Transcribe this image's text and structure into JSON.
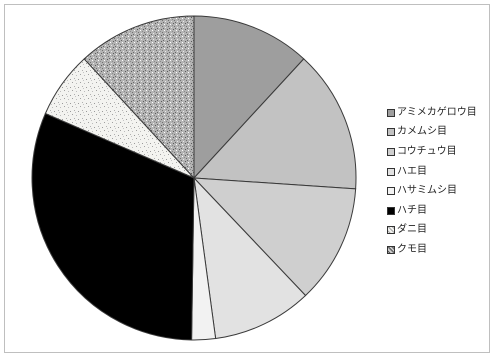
{
  "chart_data": {
    "type": "pie",
    "title": "",
    "categories": [
      "アミメカゲロウ目",
      "カメムシ目",
      "コウチュウ目",
      "ハエ目",
      "ハサミムシ目",
      "ハチ目",
      "ダニ目",
      "クモ目"
    ],
    "values": [
      12.5,
      15,
      12.5,
      10.5,
      2.5,
      33,
      7,
      12.5
    ],
    "start_angle_deg": 0,
    "direction": "clockwise",
    "legend_position": "right",
    "colors": [
      "#9e9e9e",
      "#c2c2c2",
      "#cfcfcf",
      "#e2e2e2",
      "#f2f2f2",
      "#000000",
      "#f0f0ee",
      "#a8a8a8"
    ],
    "patterns": [
      "solid",
      "solid",
      "solid",
      "solid",
      "solid",
      "solid",
      "speckle-light",
      "speckle-dark"
    ]
  }
}
